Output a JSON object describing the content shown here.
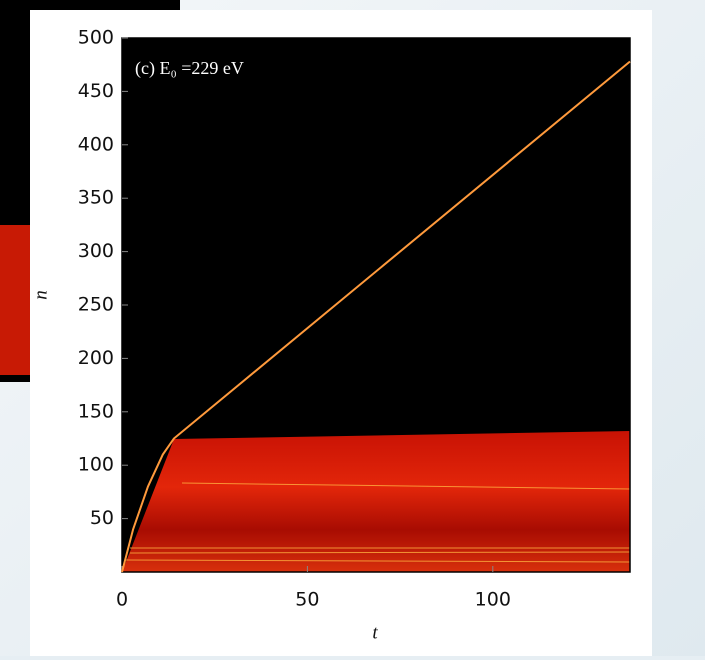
{
  "chart_data": {
    "type": "line",
    "annotation": "(c) E₀ =229 eV",
    "x_label": "t",
    "y_label": "n",
    "x": [
      0,
      3,
      7,
      11,
      14,
      137
    ],
    "series": [
      {
        "color": "#ff9a3c",
        "values": [
          0,
          40,
          80,
          110,
          125,
          478
        ]
      }
    ],
    "xlim": [
      0,
      137
    ],
    "ylim": [
      0,
      500
    ],
    "xticks": [
      0,
      50,
      100
    ],
    "yticks": [
      50,
      100,
      150,
      200,
      250,
      300,
      350,
      400,
      450,
      500
    ]
  }
}
